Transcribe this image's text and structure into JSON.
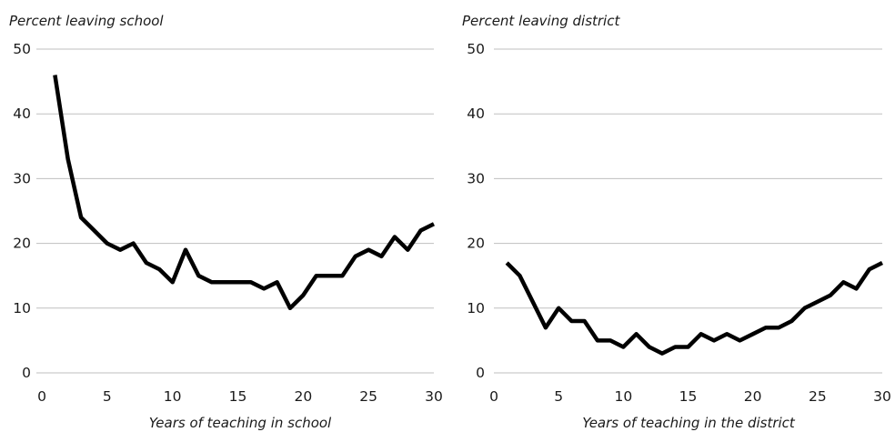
{
  "chart_data": [
    {
      "type": "line",
      "ylabel": "Percent leaving school",
      "xlabel": "Years of teaching in school",
      "xlim": [
        0,
        30
      ],
      "ylim": [
        0,
        50
      ],
      "xticks": [
        "0",
        "5",
        "10",
        "15",
        "20",
        "25",
        "30"
      ],
      "yticks": [
        "0",
        "10",
        "20",
        "30",
        "40",
        "50"
      ],
      "grid": true,
      "series": [
        {
          "x": [
            1,
            2,
            3,
            4,
            5,
            6,
            7,
            8,
            9,
            10,
            11,
            12,
            13,
            14,
            15,
            16,
            17,
            18,
            19,
            20,
            21,
            22,
            23,
            24,
            25,
            26,
            27,
            28,
            29,
            30
          ],
          "values": [
            46,
            33,
            24,
            22,
            20,
            19,
            20,
            17,
            16,
            14,
            19,
            15,
            14,
            14,
            14,
            14,
            13,
            14,
            10,
            12,
            15,
            15,
            15,
            18,
            19,
            18,
            21,
            19,
            22,
            23
          ]
        }
      ]
    },
    {
      "type": "line",
      "ylabel": "Percent leaving district",
      "xlabel": "Years of teaching in the district",
      "xlim": [
        0,
        30
      ],
      "ylim": [
        0,
        50
      ],
      "xticks": [
        "0",
        "5",
        "10",
        "15",
        "20",
        "25",
        "30"
      ],
      "yticks": [
        "0",
        "10",
        "20",
        "30",
        "40",
        "50"
      ],
      "grid": true,
      "series": [
        {
          "x": [
            1,
            2,
            3,
            4,
            5,
            6,
            7,
            8,
            9,
            10,
            11,
            12,
            13,
            14,
            15,
            16,
            17,
            18,
            19,
            20,
            21,
            22,
            23,
            24,
            25,
            26,
            27,
            28,
            29,
            30
          ],
          "values": [
            17,
            15,
            11,
            7,
            10,
            8,
            8,
            5,
            5,
            4,
            6,
            4,
            3,
            4,
            4,
            6,
            5,
            6,
            5,
            6,
            7,
            7,
            8,
            10,
            11,
            12,
            14,
            13,
            16,
            17
          ]
        }
      ]
    }
  ]
}
